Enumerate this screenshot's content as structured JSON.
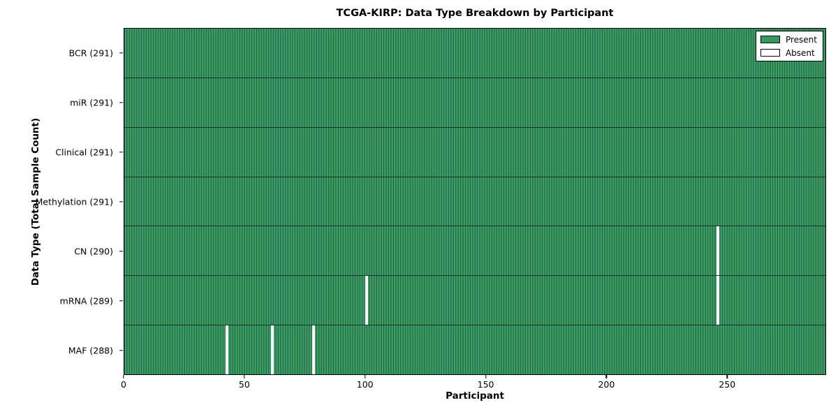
{
  "colors": {
    "present": "#339960",
    "absent": "#ffffff",
    "axis": "#000000"
  },
  "chart_data": {
    "type": "heatmap",
    "title": "TCGA-KIRP: Data Type Breakdown by Participant",
    "xlabel": "Participant",
    "ylabel": "Data Type (Total Sample Count)",
    "n_participants": 291,
    "xlim": [
      0,
      291
    ],
    "x_ticks": [
      0,
      50,
      100,
      150,
      200,
      250
    ],
    "grid": false,
    "legend_position": "upper right",
    "legend_entries": [
      {
        "label": "Present",
        "swatch": "present"
      },
      {
        "label": "Absent",
        "swatch": "absent"
      }
    ],
    "rows": [
      {
        "name": "BCR",
        "label": "BCR (291)",
        "present_count": 291,
        "absent_participants": []
      },
      {
        "name": "miR",
        "label": "miR (291)",
        "present_count": 291,
        "absent_participants": []
      },
      {
        "name": "Clinical",
        "label": "Clinical (291)",
        "present_count": 291,
        "absent_participants": []
      },
      {
        "name": "Methylation",
        "label": "Methylation (291)",
        "present_count": 291,
        "absent_participants": []
      },
      {
        "name": "CN",
        "label": "CN (290)",
        "present_count": 290,
        "absent_participants": [
          246
        ]
      },
      {
        "name": "mRNA",
        "label": "mRNA (289)",
        "present_count": 289,
        "absent_participants": [
          100,
          246
        ]
      },
      {
        "name": "MAF",
        "label": "MAF (288)",
        "present_count": 288,
        "absent_participants": [
          42,
          61,
          78
        ]
      }
    ]
  }
}
